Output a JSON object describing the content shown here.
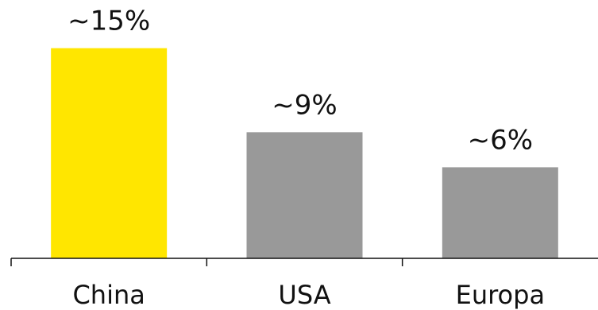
{
  "chart_data": {
    "type": "bar",
    "title": "",
    "xlabel": "",
    "ylabel": "",
    "categories": [
      "China",
      "USA",
      "Europa"
    ],
    "values": [
      15,
      9,
      6.5
    ],
    "data_labels": [
      "~15%",
      "~9%",
      "~6%"
    ],
    "ylim": [
      0,
      15.6
    ],
    "grid": false,
    "legend": "none",
    "colors": [
      "#ffe600",
      "#999999",
      "#999999"
    ]
  }
}
